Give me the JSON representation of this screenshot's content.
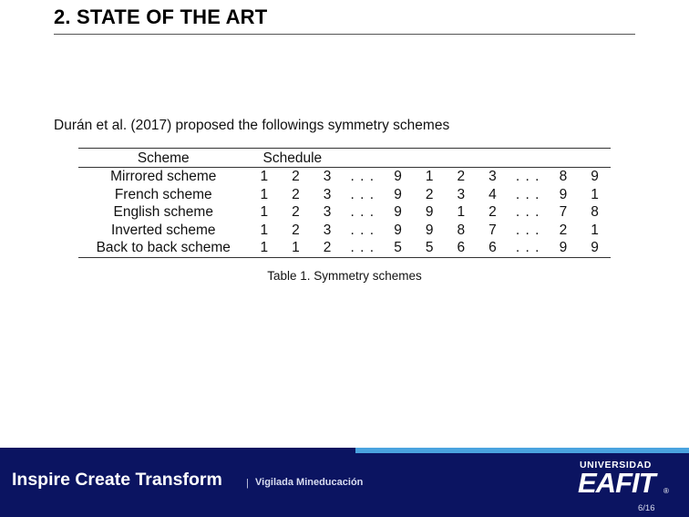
{
  "header": {
    "title": "2. STATE OF THE ART"
  },
  "body": {
    "intro": "Durán et al. (2017) proposed the followings symmetry schemes"
  },
  "table": {
    "headers": {
      "scheme": "Scheme",
      "schedule": "Schedule"
    },
    "rows": [
      {
        "scheme": "Mirrored scheme",
        "cells": [
          "1",
          "2",
          "3",
          ". . .",
          "9",
          "1",
          "2",
          "3",
          ". . .",
          "8",
          "9"
        ]
      },
      {
        "scheme": "French scheme",
        "cells": [
          "1",
          "2",
          "3",
          ". . .",
          "9",
          "2",
          "3",
          "4",
          ". . .",
          "9",
          "1"
        ]
      },
      {
        "scheme": "English scheme",
        "cells": [
          "1",
          "2",
          "3",
          ". . .",
          "9",
          "9",
          "1",
          "2",
          ". . .",
          "7",
          "8"
        ]
      },
      {
        "scheme": "Inverted scheme",
        "cells": [
          "1",
          "2",
          "3",
          ". . .",
          "9",
          "9",
          "8",
          "7",
          ". . .",
          "2",
          "1"
        ]
      },
      {
        "scheme": "Back to back scheme",
        "cells": [
          "1",
          "1",
          "2",
          ". . .",
          "5",
          "5",
          "6",
          "6",
          ". . .",
          "9",
          "9"
        ]
      }
    ],
    "caption": "Table 1. Symmetry schemes"
  },
  "footer": {
    "motto": "Inspire Create Transform",
    "separator": "|",
    "vigilada": "Vigilada Mineducación",
    "logo_top": "UNIVERSIDAD",
    "logo_main": "EAFIT",
    "logo_reg": "®",
    "page": "6/16"
  },
  "colors": {
    "footer_bg": "#0b1461",
    "footer_accent": "#4aa3df"
  }
}
